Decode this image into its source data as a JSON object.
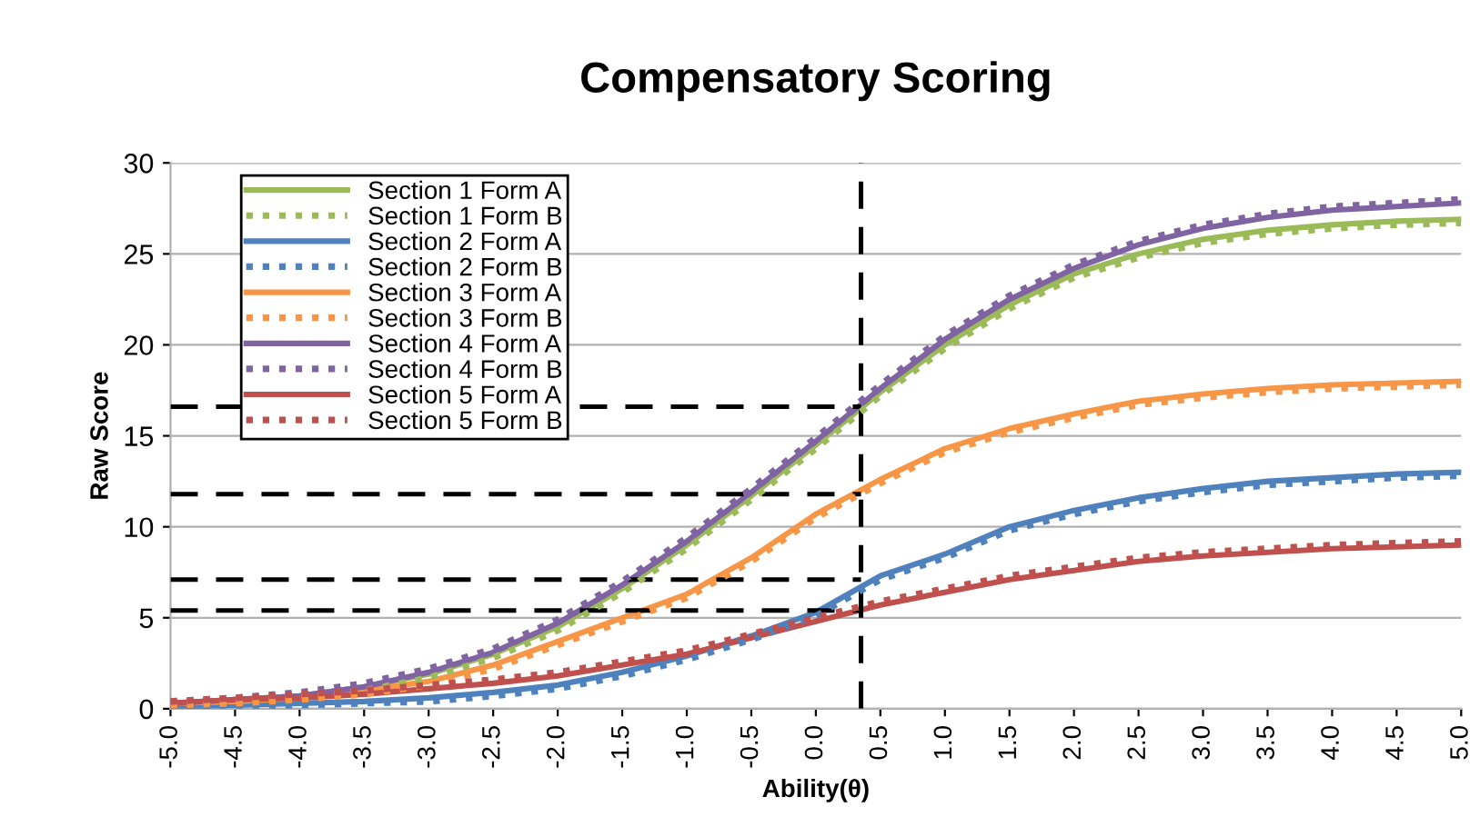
{
  "chart_data": {
    "type": "line",
    "title": "Compensatory Scoring",
    "xlabel": "Ability(θ)",
    "ylabel": "Raw Score",
    "x": [
      -5,
      -4.5,
      -4,
      -3.5,
      -3,
      -2.5,
      -2,
      -1.5,
      -1,
      -0.5,
      0,
      0.5,
      1,
      1.5,
      2,
      2.5,
      3,
      3.5,
      4,
      4.5,
      5
    ],
    "series": [
      {
        "name": "Section 1 Form A",
        "color": "#9bbb59",
        "line_style": "solid",
        "values": [
          0.3,
          0.5,
          0.7,
          1.2,
          1.9,
          3.0,
          4.5,
          6.6,
          9.0,
          11.7,
          14.5,
          17.4,
          20.0,
          22.2,
          23.9,
          25.0,
          25.8,
          26.3,
          26.6,
          26.8,
          26.9
        ]
      },
      {
        "name": "Section 1 Form B",
        "color": "#9bbb59",
        "line_style": "dotted",
        "values": [
          0.2,
          0.4,
          0.6,
          1.0,
          1.7,
          2.8,
          4.3,
          6.4,
          8.8,
          11.5,
          14.3,
          17.2,
          19.8,
          22.0,
          23.7,
          24.8,
          25.6,
          26.1,
          26.4,
          26.6,
          26.7
        ]
      },
      {
        "name": "Section 2 Form A",
        "color": "#4f81bd",
        "line_style": "solid",
        "values": [
          0.1,
          0.2,
          0.3,
          0.4,
          0.6,
          0.9,
          1.3,
          2.0,
          2.9,
          4.0,
          5.3,
          7.3,
          8.5,
          10.0,
          10.9,
          11.6,
          12.1,
          12.5,
          12.7,
          12.9,
          13.0
        ]
      },
      {
        "name": "Section 2 Form B",
        "color": "#4f81bd",
        "line_style": "dotted",
        "values": [
          0.0,
          0.1,
          0.2,
          0.3,
          0.4,
          0.7,
          1.1,
          1.8,
          2.7,
          3.8,
          5.1,
          7.1,
          8.3,
          9.8,
          10.7,
          11.4,
          11.9,
          12.3,
          12.5,
          12.7,
          12.8
        ]
      },
      {
        "name": "Section 3 Form A",
        "color": "#f79646",
        "line_style": "solid",
        "values": [
          0.3,
          0.4,
          0.6,
          1.0,
          1.5,
          2.4,
          3.7,
          5.0,
          6.3,
          8.3,
          10.7,
          12.6,
          14.3,
          15.4,
          16.2,
          16.9,
          17.3,
          17.6,
          17.8,
          17.9,
          18.0
        ]
      },
      {
        "name": "Section 3 Form B",
        "color": "#f79646",
        "line_style": "dotted",
        "values": [
          0.2,
          0.3,
          0.5,
          0.8,
          1.3,
          2.2,
          3.5,
          4.8,
          6.1,
          8.1,
          10.5,
          12.4,
          14.1,
          15.2,
          16.0,
          16.7,
          17.1,
          17.4,
          17.6,
          17.7,
          17.8
        ]
      },
      {
        "name": "Section 4 Form A",
        "color": "#8064a2",
        "line_style": "solid",
        "values": [
          0.3,
          0.5,
          0.7,
          1.2,
          2.0,
          3.1,
          4.7,
          6.8,
          9.2,
          11.9,
          14.7,
          17.6,
          20.3,
          22.5,
          24.2,
          25.5,
          26.4,
          27.0,
          27.4,
          27.6,
          27.8
        ]
      },
      {
        "name": "Section 4 Form B",
        "color": "#8064a2",
        "line_style": "dotted",
        "values": [
          0.4,
          0.6,
          0.9,
          1.4,
          2.2,
          3.3,
          4.9,
          7.0,
          9.4,
          12.1,
          14.9,
          17.8,
          20.5,
          22.7,
          24.4,
          25.7,
          26.6,
          27.2,
          27.6,
          27.8,
          28.0
        ]
      },
      {
        "name": "Section 5 Form A",
        "color": "#c0504d",
        "line_style": "solid",
        "values": [
          0.3,
          0.5,
          0.6,
          0.8,
          1.1,
          1.4,
          1.8,
          2.4,
          3.0,
          3.9,
          4.8,
          5.7,
          6.4,
          7.1,
          7.6,
          8.1,
          8.4,
          8.6,
          8.8,
          8.9,
          9.0
        ]
      },
      {
        "name": "Section 5 Form B",
        "color": "#c0504d",
        "line_style": "dotted",
        "values": [
          0.4,
          0.6,
          0.8,
          1.0,
          1.3,
          1.6,
          2.0,
          2.6,
          3.2,
          4.1,
          5.0,
          5.9,
          6.6,
          7.3,
          7.8,
          8.3,
          8.6,
          8.8,
          9.0,
          9.1,
          9.2
        ]
      }
    ],
    "xlim": [
      -5,
      5
    ],
    "xticks": [
      {
        "value": -5,
        "label": "-5.0"
      },
      {
        "value": -4.5,
        "label": "-4.5"
      },
      {
        "value": -4,
        "label": "-4.0"
      },
      {
        "value": -3.5,
        "label": "-3.5"
      },
      {
        "value": -3,
        "label": "-3.0"
      },
      {
        "value": -2.5,
        "label": "-2.5"
      },
      {
        "value": -2,
        "label": "-2.0"
      },
      {
        "value": -1.5,
        "label": "-1.5"
      },
      {
        "value": -1,
        "label": "-1.0"
      },
      {
        "value": -0.5,
        "label": "-0.5"
      },
      {
        "value": 0,
        "label": "0.0"
      },
      {
        "value": 0.5,
        "label": "0.5"
      },
      {
        "value": 1,
        "label": "1.0"
      },
      {
        "value": 1.5,
        "label": "1.5"
      },
      {
        "value": 2,
        "label": "2.0"
      },
      {
        "value": 2.5,
        "label": "2.5"
      },
      {
        "value": 3,
        "label": "3.0"
      },
      {
        "value": 3.5,
        "label": "3.5"
      },
      {
        "value": 4,
        "label": "4.0"
      },
      {
        "value": 4.5,
        "label": "4.5"
      },
      {
        "value": 5,
        "label": "5.0"
      }
    ],
    "ylim": [
      0,
      30
    ],
    "yticks": [
      0,
      5,
      10,
      15,
      20,
      25,
      30
    ],
    "ref_lines": [
      {
        "axis": "x",
        "value": 0.35,
        "color": "#000000",
        "line_style": "dashed"
      },
      {
        "axis": "y",
        "value": 16.6,
        "color": "#000000",
        "line_style": "dashed"
      },
      {
        "axis": "y",
        "value": 11.8,
        "color": "#000000",
        "line_style": "dashed"
      },
      {
        "axis": "y",
        "value": 7.1,
        "color": "#000000",
        "line_style": "dashed"
      },
      {
        "axis": "y",
        "value": 5.4,
        "color": "#000000",
        "line_style": "dashed"
      }
    ],
    "grid": "y",
    "legend": "top left",
    "marker": "none"
  }
}
